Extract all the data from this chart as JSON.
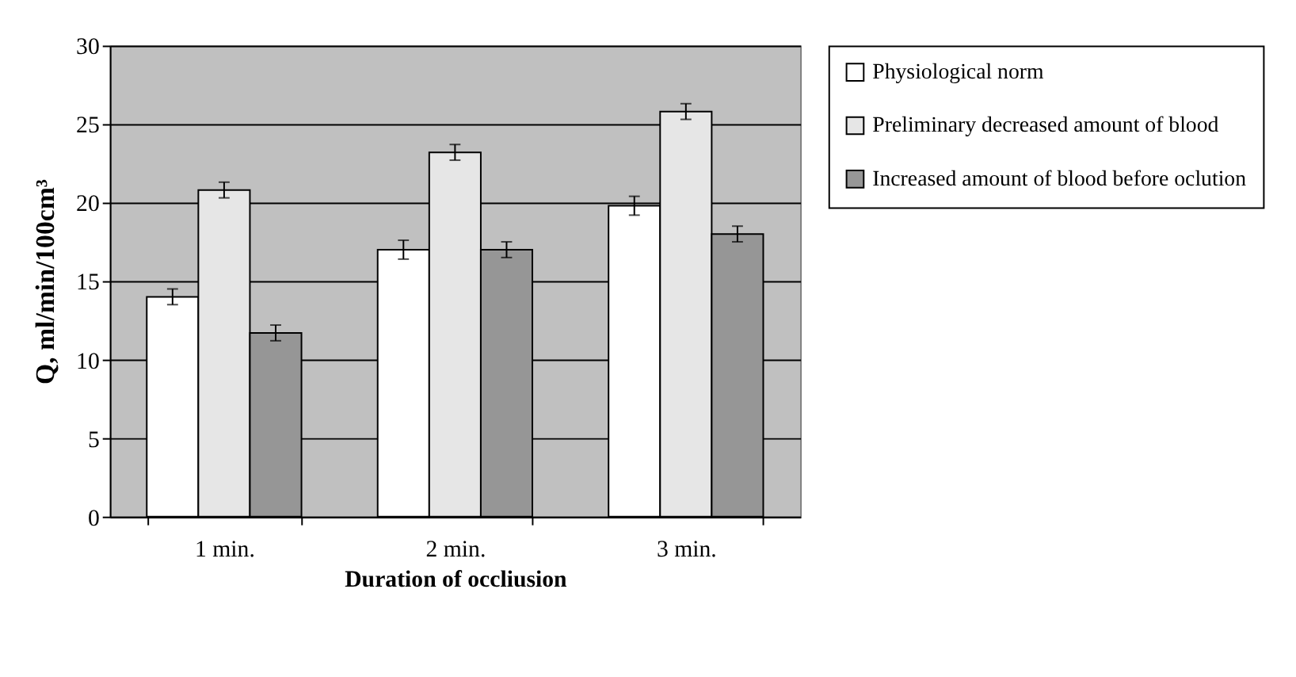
{
  "chart_data": {
    "type": "bar",
    "xlabel": "Duration of occliusion",
    "ylabel": "Q, ml/min/100cm³",
    "categories": [
      "1 min.",
      "2  min.",
      "3   min."
    ],
    "series": [
      {
        "name": "Physiological norm",
        "color": "#ffffff",
        "values": [
          14,
          17,
          19.8
        ],
        "errors": [
          0.5,
          0.6,
          0.6
        ]
      },
      {
        "name": "Preliminary decreased amount of blood",
        "color": "#e6e6e6",
        "values": [
          20.8,
          23.2,
          25.8
        ],
        "errors": [
          0.5,
          0.5,
          0.5
        ]
      },
      {
        "name": "Increased amount of blood before oclution",
        "color": "#969696",
        "values": [
          11.7,
          17,
          18
        ],
        "errors": [
          0.5,
          0.5,
          0.5
        ]
      }
    ],
    "ylim": [
      0,
      30
    ],
    "yticks": [
      0,
      5,
      10,
      15,
      20,
      25,
      30
    ],
    "grid": "y",
    "legend": "right"
  }
}
